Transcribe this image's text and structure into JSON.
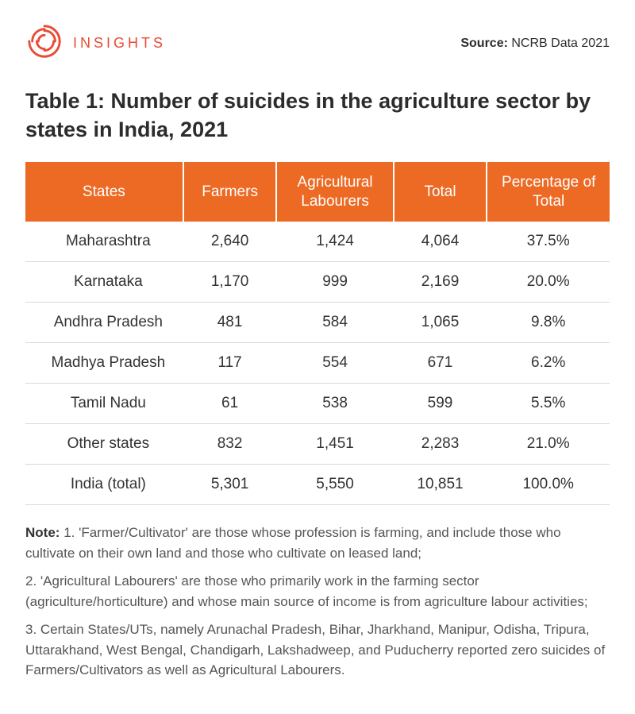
{
  "brand": {
    "name": "INSIGHTS",
    "logo_color": "#e94b35"
  },
  "source": {
    "label": "Source:",
    "value": "NCRB Data 2021"
  },
  "title": "Table 1: Number of suicides in the agriculture sector by states in India, 2021",
  "table": {
    "header_bg": "#ec6a24",
    "header_fg": "#ffffff",
    "row_border": "#d9d9d9",
    "columns": [
      "States",
      "Farmers",
      "Agricultural Labourers",
      "Total",
      "Percentage of Total"
    ],
    "rows": [
      [
        "Maharashtra",
        "2,640",
        "1,424",
        "4,064",
        "37.5%"
      ],
      [
        "Karnataka",
        "1,170",
        "999",
        "2,169",
        "20.0%"
      ],
      [
        "Andhra Pradesh",
        "481",
        "584",
        "1,065",
        "9.8%"
      ],
      [
        "Madhya Pradesh",
        "117",
        "554",
        "671",
        "6.2%"
      ],
      [
        "Tamil Nadu",
        "61",
        "538",
        "599",
        "5.5%"
      ],
      [
        "Other states",
        "832",
        "1,451",
        "2,283",
        "21.0%"
      ],
      [
        "India (total)",
        "5,301",
        "5,550",
        "10,851",
        "100.0%"
      ]
    ]
  },
  "notes": {
    "label": "Note:",
    "items": [
      "1. 'Farmer/Cultivator' are those whose profession is farming, and include those who cultivate on their own land and those who cultivate on leased land;",
      "2. 'Agricultural Labourers' are those who primarily work in the farming sector (agriculture/horticulture) and whose main source of income is from agriculture labour activities;",
      "3. Certain States/UTs, namely Arunachal Pradesh, Bihar, Jharkhand, Manipur, Odisha, Tripura, Uttarakhand, West Bengal, Chandigarh, Lakshadweep, and Puducherry reported zero suicides of Farmers/Cultivators as well as Agricultural Labourers."
    ]
  }
}
